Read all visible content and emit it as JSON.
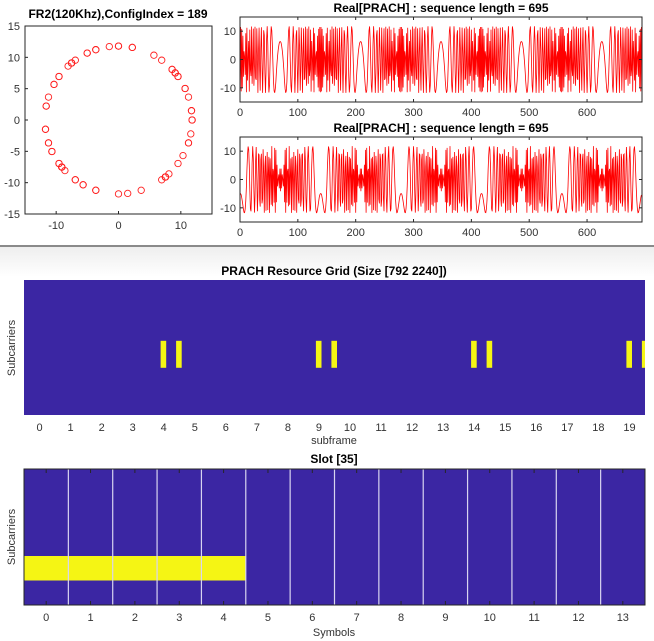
{
  "colors": {
    "grid_bg": "#3b26a3",
    "grid_on": "#f5f514",
    "wave": "#ff0000",
    "sep": "#b8b0e0"
  },
  "chart_data": [
    {
      "type": "scatter",
      "title": "FR2(120Khz),ConfigIndex = 189",
      "xlim": [
        -15,
        15
      ],
      "ylim": [
        -15,
        15
      ],
      "xticks": [
        "-10",
        "0",
        "10"
      ],
      "yticks": [
        "15",
        "10",
        "5",
        "0",
        "-5",
        "-10",
        "-15"
      ],
      "marker": "circle",
      "radius": 11.8,
      "point_count": 70
    },
    {
      "type": "line",
      "title": "Real[PRACH] : sequence length = 695",
      "xlim": [
        0,
        695
      ],
      "ylim": [
        -15,
        15
      ],
      "xticks": [
        "0",
        "100",
        "200",
        "300",
        "400",
        "500",
        "600"
      ],
      "yticks": [
        "10",
        "0",
        "-10"
      ],
      "amplitude": 11.8,
      "length": 695
    },
    {
      "type": "line",
      "title": "Real[PRACH] : sequence length = 695",
      "xlim": [
        0,
        695
      ],
      "ylim": [
        -15,
        15
      ],
      "xticks": [
        "0",
        "100",
        "200",
        "300",
        "400",
        "500",
        "600"
      ],
      "yticks": [
        "10",
        "0",
        "-10"
      ],
      "amplitude": 11.8,
      "length": 695
    },
    {
      "type": "heatmap",
      "title": "PRACH Resource Grid (Size [792 2240])",
      "xlabel": "subframe",
      "ylabel": "Subcarriers",
      "xlim": [
        -0.5,
        19.5
      ],
      "xticks": [
        "0",
        "1",
        "2",
        "3",
        "4",
        "5",
        "6",
        "7",
        "8",
        "9",
        "10",
        "11",
        "12",
        "13",
        "14",
        "15",
        "16",
        "17",
        "18",
        "19"
      ],
      "active_blocks": [
        3.9,
        4.4,
        8.9,
        9.4,
        13.9,
        14.4,
        18.9,
        19.4
      ],
      "block_width": 0.18,
      "active_rows": [
        0.35,
        0.55
      ]
    },
    {
      "type": "heatmap",
      "title": "Slot [35]",
      "xlabel": "Symbols",
      "ylabel": "Subcarriers",
      "xlim": [
        -0.5,
        13.5
      ],
      "xticks": [
        "0",
        "1",
        "2",
        "3",
        "4",
        "5",
        "6",
        "7",
        "8",
        "9",
        "10",
        "11",
        "12",
        "13"
      ],
      "active_symbols": [
        0,
        1,
        2,
        3,
        4
      ],
      "active_rows": [
        0.18,
        0.36
      ]
    }
  ]
}
